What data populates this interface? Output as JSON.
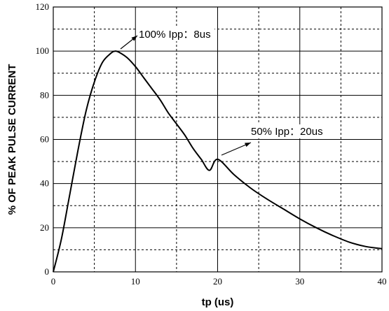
{
  "chart_data": {
    "type": "line",
    "xlabel": "tp (us)",
    "ylabel": "% OF PEAK PULSE CURRENT",
    "xlim": [
      0,
      40
    ],
    "ylim": [
      0,
      120
    ],
    "x_ticks": [
      "0",
      "10",
      "20",
      "30",
      "40"
    ],
    "y_ticks": [
      "0",
      "20",
      "40",
      "60",
      "80",
      "100",
      "120"
    ],
    "grid": {
      "solid_x": [
        10,
        20,
        30,
        40
      ],
      "dashed_x": [
        5,
        15,
        25,
        35
      ],
      "solid_y": [
        20,
        40,
        60,
        80,
        100,
        120
      ],
      "dashed_y": [
        10,
        30,
        50,
        70,
        90,
        110
      ]
    },
    "series": [
      {
        "x": [
          0,
          1,
          2,
          3,
          4,
          5,
          6,
          7,
          7.5,
          8,
          9,
          10,
          11,
          12,
          13,
          14,
          15,
          16,
          17,
          18,
          19,
          20,
          22,
          24,
          26,
          28,
          30,
          32,
          34,
          36,
          38,
          40
        ],
        "y": [
          0,
          15,
          35,
          55,
          73,
          86,
          95,
          99,
          100,
          99.5,
          97,
          93,
          88,
          83,
          78,
          72,
          67,
          62,
          56,
          51,
          46,
          51,
          44,
          38,
          33,
          28.5,
          24,
          20,
          16.5,
          13.5,
          11.5,
          10.5
        ],
        "color": "#000000"
      }
    ],
    "annotations": [
      {
        "text": "100% Ipp：8us",
        "point": [
          8,
          100
        ]
      },
      {
        "text": "50% Ipp：20us",
        "point": [
          20,
          50
        ]
      }
    ]
  }
}
